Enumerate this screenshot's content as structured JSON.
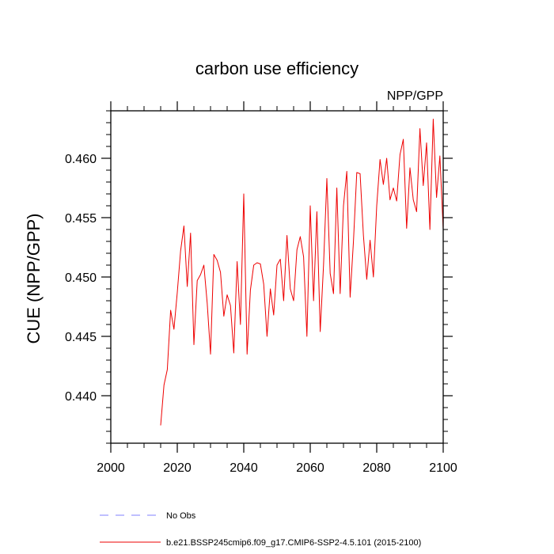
{
  "chart_data": {
    "type": "line",
    "title": "carbon use efficiency",
    "subtitle_right": "NPP/GPP",
    "xlabel": "",
    "ylabel": "CUE  (NPP/GPP)",
    "xlim": [
      2000,
      2100
    ],
    "ylim": [
      0.436,
      0.464
    ],
    "x_ticks": [
      2000,
      2020,
      2040,
      2060,
      2080,
      2100
    ],
    "x_tick_labels": [
      "2000",
      "2020",
      "2040",
      "2060",
      "2080",
      "2100"
    ],
    "y_ticks": [
      0.44,
      0.445,
      0.45,
      0.455,
      0.46
    ],
    "y_tick_labels": [
      "0.440",
      "0.445",
      "0.450",
      "0.455",
      "0.460"
    ],
    "grid": false,
    "series": [
      {
        "name": "b.e21.BSSP245cmip6.f09_g17.CMIP6-SSP2-4.5.101 (2015-2100)",
        "color": "#ee0000",
        "x": [
          2015,
          2016,
          2017,
          2018,
          2019,
          2020,
          2021,
          2022,
          2023,
          2024,
          2025,
          2026,
          2027,
          2028,
          2029,
          2030,
          2031,
          2032,
          2033,
          2034,
          2035,
          2036,
          2037,
          2038,
          2039,
          2040,
          2041,
          2042,
          2043,
          2044,
          2045,
          2046,
          2047,
          2048,
          2049,
          2050,
          2051,
          2052,
          2053,
          2054,
          2055,
          2056,
          2057,
          2058,
          2059,
          2060,
          2061,
          2062,
          2063,
          2064,
          2065,
          2066,
          2067,
          2068,
          2069,
          2070,
          2071,
          2072,
          2073,
          2074,
          2075,
          2076,
          2077,
          2078,
          2079,
          2080,
          2081,
          2082,
          2083,
          2084,
          2085,
          2086,
          2087,
          2088,
          2089,
          2090,
          2091,
          2092,
          2093,
          2094,
          2095,
          2096,
          2097,
          2098,
          2099,
          2100
        ],
        "values": [
          0.4375,
          0.4409,
          0.4422,
          0.4472,
          0.4456,
          0.4487,
          0.4522,
          0.4543,
          0.4492,
          0.4537,
          0.4443,
          0.4497,
          0.4502,
          0.451,
          0.4478,
          0.4435,
          0.4519,
          0.4514,
          0.4504,
          0.4467,
          0.4485,
          0.4476,
          0.4436,
          0.4513,
          0.446,
          0.457,
          0.4435,
          0.4489,
          0.451,
          0.4512,
          0.4511,
          0.4494,
          0.445,
          0.449,
          0.4468,
          0.451,
          0.4515,
          0.448,
          0.4535,
          0.449,
          0.448,
          0.4523,
          0.4534,
          0.4517,
          0.445,
          0.456,
          0.448,
          0.4555,
          0.4454,
          0.451,
          0.4583,
          0.4503,
          0.4486,
          0.4575,
          0.4486,
          0.456,
          0.4589,
          0.4483,
          0.453,
          0.4588,
          0.4587,
          0.4535,
          0.4498,
          0.4531,
          0.45,
          0.456,
          0.4599,
          0.4578,
          0.46,
          0.4565,
          0.4575,
          0.4564,
          0.4603,
          0.4616,
          0.4541,
          0.4592,
          0.4565,
          0.4555,
          0.4625,
          0.4577,
          0.4613,
          0.454,
          0.4633,
          0.4567,
          0.4602,
          0.454
        ]
      }
    ],
    "legend": {
      "placement": "bottom-left",
      "entries": [
        {
          "label": "No Obs",
          "style": "dashed",
          "color": "#8080ff"
        },
        {
          "label": "b.e21.BSSP245cmip6.f09_g17.CMIP6-SSP2-4.5.101 (2015-2100)",
          "style": "solid",
          "color": "#ee0000"
        }
      ]
    }
  }
}
